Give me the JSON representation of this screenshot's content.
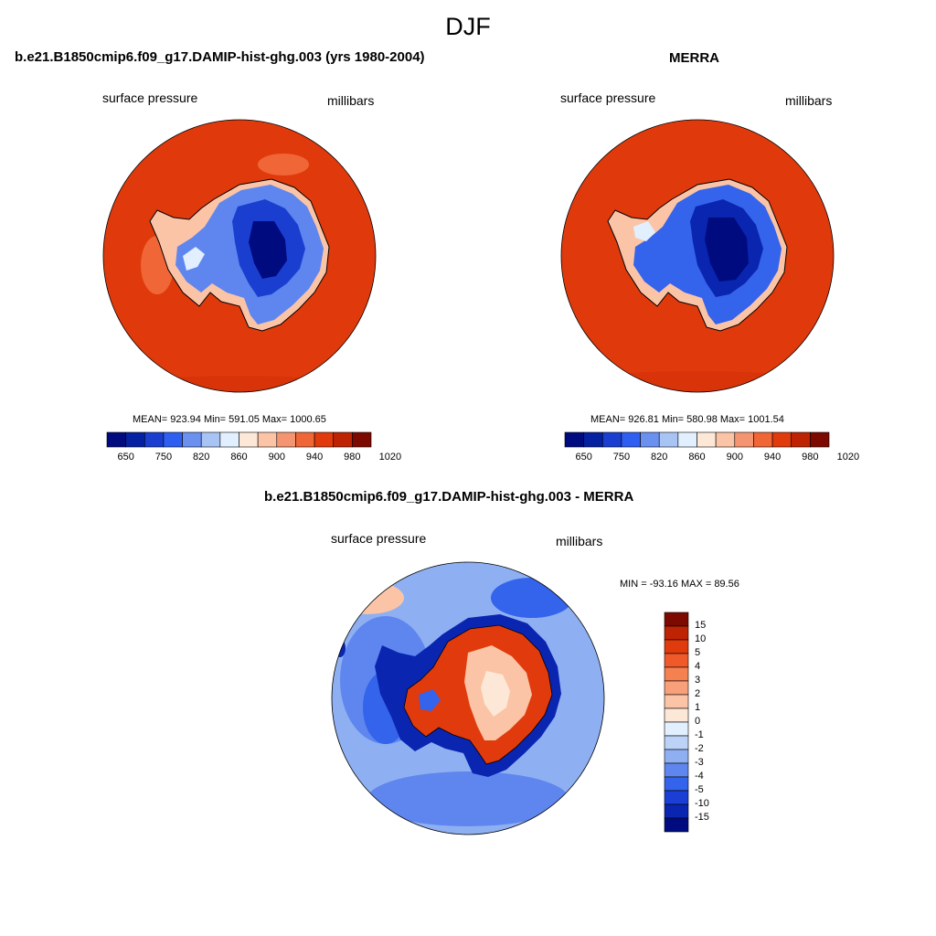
{
  "figure": {
    "title": "DJF"
  },
  "panels": [
    {
      "title": "b.e21.B1850cmip6.f09_g17.DAMIP-hist-ghg.003 (yrs 1980-2004)",
      "left_label": "surface pressure",
      "right_label": "millibars",
      "stats": "MEAN= 923.94  Min= 591.05  Max= 1000.65"
    },
    {
      "title": "MERRA",
      "left_label": "surface pressure",
      "right_label": "millibars",
      "stats": "MEAN= 926.81  Min= 580.98  Max= 1001.54"
    },
    {
      "title": "b.e21.B1850cmip6.f09_g17.DAMIP-hist-ghg.003 - MERRA",
      "left_label": "surface pressure",
      "right_label": "millibars",
      "stats": "MIN = -93.16 MAX =  89.56"
    }
  ],
  "colorbar_abs": {
    "labels": [
      "650",
      "750",
      "820",
      "860",
      "900",
      "940",
      "980",
      "1020"
    ],
    "colors": [
      "#000b80",
      "#0520a0",
      "#1a3fd0",
      "#2f5ff0",
      "#6a90f0",
      "#a8c4f5",
      "#e2efff",
      "#fde8d8",
      "#fbc4a6",
      "#f59470",
      "#f06636",
      "#e13a0c",
      "#be2303",
      "#7d0a01"
    ]
  },
  "colorbar_diff": {
    "labels": [
      "15",
      "10",
      "5",
      "4",
      "3",
      "2",
      "1",
      "0",
      "-1",
      "-2",
      "-3",
      "-4",
      "-5",
      "-10",
      "-15"
    ],
    "colors": [
      "#7d0a01",
      "#be2303",
      "#e13a0c",
      "#f05a2a",
      "#f58050",
      "#f8a07a",
      "#fbc4a6",
      "#fde8d8",
      "#e2efff",
      "#bcd2f7",
      "#8eb0f2",
      "#5e86ee",
      "#3463ec",
      "#1b3fd4",
      "#0a25b0",
      "#000b80"
    ]
  }
}
